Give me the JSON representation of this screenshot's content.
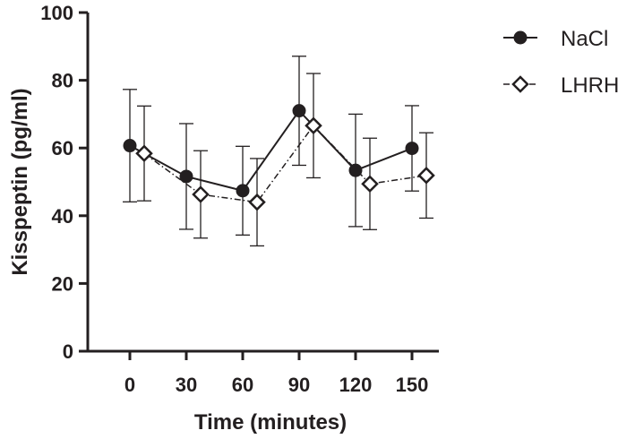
{
  "chart_data": {
    "type": "line",
    "title": "",
    "xlabel": "Time (minutes)",
    "ylabel": "Kisspeptin (pg/ml)",
    "x": [
      0,
      30,
      60,
      90,
      120,
      150
    ],
    "xticks": [
      "0",
      "30",
      "60",
      "90",
      "120",
      "150"
    ],
    "yticks": [
      "0",
      "20",
      "40",
      "60",
      "80",
      "100"
    ],
    "ylim": [
      0,
      100
    ],
    "legend_position": "top-right",
    "series": [
      {
        "name": "NaCl",
        "marker": "filled-circle",
        "line_style": "solid",
        "values": [
          60.7,
          51.6,
          47.4,
          71.0,
          53.4,
          59.9
        ],
        "errors": [
          16.6,
          15.6,
          13.1,
          16.1,
          16.6,
          12.6
        ]
      },
      {
        "name": "LHRH",
        "marker": "open-diamond",
        "line_style": "dash-dot",
        "values": [
          58.4,
          46.3,
          44.0,
          66.6,
          49.4,
          51.9
        ],
        "errors": [
          14.0,
          12.9,
          12.9,
          15.4,
          13.5,
          12.6
        ]
      }
    ]
  },
  "colors": {
    "ink": "#231f20",
    "background": "#ffffff"
  }
}
